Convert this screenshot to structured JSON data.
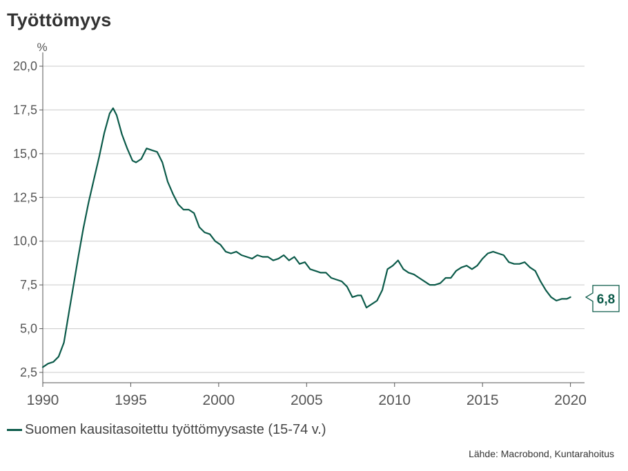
{
  "chart_data": {
    "type": "line",
    "title": "Työttömyys",
    "ylabel": "%",
    "xlim": [
      1990,
      2020.8
    ],
    "ylim": [
      2.5,
      20.0
    ],
    "x_ticks": [
      "1990",
      "1995",
      "2000",
      "2005",
      "2010",
      "2015",
      "2020"
    ],
    "y_ticks": [
      "2,5",
      "5,0",
      "7,5",
      "10,0",
      "12,5",
      "15,0",
      "17,5",
      "20,0"
    ],
    "grid": true,
    "legend_position": "bottom-left",
    "last_value_label": "6,8",
    "series": [
      {
        "name": "Suomen kausitasoitettu työttömyysaste (15-74 v.)",
        "color": "#0b5a49",
        "x": [
          1990.0,
          1990.3,
          1990.6,
          1990.9,
          1991.2,
          1991.5,
          1991.8,
          1992.0,
          1992.3,
          1992.6,
          1992.9,
          1993.2,
          1993.5,
          1993.8,
          1994.0,
          1994.2,
          1994.5,
          1994.8,
          1995.1,
          1995.3,
          1995.6,
          1995.9,
          1996.2,
          1996.5,
          1996.8,
          1997.1,
          1997.4,
          1997.7,
          1998.0,
          1998.3,
          1998.6,
          1998.9,
          1999.2,
          1999.5,
          1999.8,
          2000.1,
          2000.4,
          2000.7,
          2001.0,
          2001.3,
          2001.6,
          2001.9,
          2002.2,
          2002.5,
          2002.8,
          2003.1,
          2003.4,
          2003.7,
          2004.0,
          2004.3,
          2004.6,
          2004.9,
          2005.2,
          2005.5,
          2005.8,
          2006.1,
          2006.4,
          2006.7,
          2007.0,
          2007.3,
          2007.6,
          2007.9,
          2008.1,
          2008.4,
          2008.7,
          2009.0,
          2009.3,
          2009.6,
          2009.9,
          2010.2,
          2010.5,
          2010.8,
          2011.1,
          2011.4,
          2011.7,
          2012.0,
          2012.3,
          2012.6,
          2012.9,
          2013.2,
          2013.5,
          2013.8,
          2014.1,
          2014.4,
          2014.7,
          2015.0,
          2015.3,
          2015.6,
          2015.9,
          2016.2,
          2016.5,
          2016.8,
          2017.1,
          2017.4,
          2017.7,
          2018.0,
          2018.3,
          2018.6,
          2018.9,
          2019.2,
          2019.5,
          2019.8,
          2020.0
        ],
        "y": [
          2.8,
          3.0,
          3.1,
          3.4,
          4.2,
          6.0,
          7.8,
          9.0,
          10.7,
          12.2,
          13.5,
          14.8,
          16.2,
          17.3,
          17.6,
          17.2,
          16.1,
          15.3,
          14.6,
          14.5,
          14.7,
          15.3,
          15.2,
          15.1,
          14.5,
          13.4,
          12.7,
          12.1,
          11.8,
          11.8,
          11.6,
          10.8,
          10.5,
          10.4,
          10.0,
          9.8,
          9.4,
          9.3,
          9.4,
          9.2,
          9.1,
          9.0,
          9.2,
          9.1,
          9.1,
          8.9,
          9.0,
          9.2,
          8.9,
          9.1,
          8.7,
          8.8,
          8.4,
          8.3,
          8.2,
          8.2,
          7.9,
          7.8,
          7.7,
          7.4,
          6.8,
          6.9,
          6.9,
          6.2,
          6.4,
          6.6,
          7.2,
          8.4,
          8.6,
          8.9,
          8.4,
          8.2,
          8.1,
          7.9,
          7.7,
          7.5,
          7.5,
          7.6,
          7.9,
          7.9,
          8.3,
          8.5,
          8.6,
          8.4,
          8.6,
          9.0,
          9.3,
          9.4,
          9.3,
          9.2,
          8.8,
          8.7,
          8.7,
          8.8,
          8.5,
          8.3,
          7.7,
          7.2,
          6.8,
          6.6,
          6.7,
          6.7,
          6.8
        ]
      }
    ]
  },
  "source_text": "Lähde: Macrobond, Kuntarahoitus"
}
